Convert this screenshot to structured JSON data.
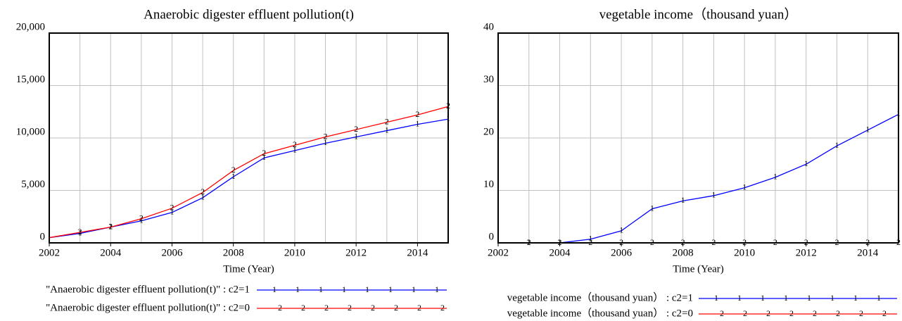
{
  "chart_data": [
    {
      "type": "line",
      "title": "Anaerobic digester effluent pollution(t)",
      "x_label": "Time (Year)",
      "x": [
        2002,
        2003,
        2004,
        2005,
        2006,
        2007,
        2008,
        2009,
        2010,
        2011,
        2012,
        2013,
        2014,
        2015
      ],
      "xlim": [
        2002,
        2015
      ],
      "xticks": [
        2002,
        2004,
        2006,
        2008,
        2010,
        2012,
        2014
      ],
      "ylim": [
        0,
        20000
      ],
      "yticks": [
        0,
        {
          "value": 5000,
          "label": "5,000"
        },
        {
          "value": 10000,
          "label": "10,000"
        },
        {
          "value": 15000,
          "label": "15,000"
        },
        {
          "value": 20000,
          "label": "20,000"
        }
      ],
      "grid": true,
      "series": [
        {
          "name": "\"Anaerobic digester effluent pollution(t)\" : c2=1",
          "marker": "1",
          "color": "#0000ff",
          "values": [
            500,
            900,
            1500,
            2100,
            2900,
            4300,
            6300,
            8100,
            8800,
            9500,
            10100,
            10700,
            11300,
            11800
          ]
        },
        {
          "name": "\"Anaerobic digester effluent pollution(t)\" : c2=0",
          "marker": "2",
          "color": "#ff0000",
          "values": [
            500,
            1000,
            1500,
            2300,
            3300,
            4800,
            6900,
            8500,
            9300,
            10100,
            10800,
            11500,
            12200,
            13000
          ]
        }
      ]
    },
    {
      "type": "line",
      "title": "vegetable income（thousand yuan）",
      "x_label": "Time (Year)",
      "x": [
        2002,
        2003,
        2004,
        2005,
        2006,
        2007,
        2008,
        2009,
        2010,
        2011,
        2012,
        2013,
        2014,
        2015
      ],
      "xlim": [
        2002,
        2015
      ],
      "xticks": [
        2002,
        2004,
        2006,
        2008,
        2010,
        2012,
        2014
      ],
      "ylim": [
        0,
        40
      ],
      "yticks": [
        0,
        10,
        20,
        30,
        40
      ],
      "grid": true,
      "series": [
        {
          "name": "vegetable income（thousand yuan） : c2=1",
          "marker": "1",
          "color": "#0000ff",
          "values": [
            0,
            0,
            0,
            0.7,
            2.3,
            6.5,
            8,
            9,
            10.5,
            12.5,
            15,
            18.5,
            21.5,
            24.5
          ]
        },
        {
          "name": "vegetable income（thousand yuan） : c2=0",
          "marker": "2",
          "color": "#ff0000",
          "values": [
            0,
            0,
            0,
            0,
            0,
            0,
            0,
            0,
            0,
            0,
            0,
            0,
            0,
            0
          ]
        }
      ]
    }
  ]
}
